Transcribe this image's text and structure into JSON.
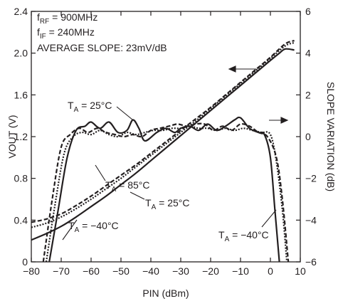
{
  "chart_data": {
    "type": "line",
    "xlabel": "PIN (dBm)",
    "ylabel_left": "VOUT (V)",
    "ylabel_right": "SLOPE VARIATION (dB)",
    "xlim": [
      -80,
      10
    ],
    "ylim_left": [
      0,
      2.4
    ],
    "ylim_right": [
      -6,
      6
    ],
    "x_ticks": [
      "−80",
      "−70",
      "−60",
      "−50",
      "−40",
      "−30",
      "−20",
      "−10",
      "0",
      "10"
    ],
    "y_ticks_left": [
      "0",
      "0.4",
      "0.8",
      "1.2",
      "1.6",
      "2.0",
      "2.4"
    ],
    "y_ticks_right": [
      "−6",
      "−4",
      "−2",
      "0",
      "2",
      "4",
      "6"
    ],
    "grid": false,
    "conditions": {
      "frf": {
        "pre": "f",
        "sub": "RF",
        "post": " = 900MHz"
      },
      "fif": {
        "pre": "f",
        "sub": "IF",
        "post": " = 240MHz"
      },
      "slope": "AVERAGE SLOPE: 23mV/dB"
    },
    "annotations": {
      "ta25_top": {
        "pre": "T",
        "sub": "A",
        "post": " = 25°C"
      },
      "ta85": {
        "pre": "T",
        "sub": "A",
        "post": " = 85°C"
      },
      "ta25_mid": {
        "pre": "T",
        "sub": "A",
        "post": " = 25°C"
      },
      "ta_m40_left": {
        "pre": "T",
        "sub": "A",
        "post": " = −40°C"
      },
      "ta_m40_right": {
        "pre": "T",
        "sub": "A",
        "post": " = −40°C"
      }
    },
    "series": [
      {
        "axis": "left",
        "style": "solid",
        "x": [
          -80,
          -75,
          -70,
          -65,
          -60,
          -55,
          -50,
          -45,
          -40,
          -35,
          -30,
          -25,
          -20,
          -15,
          -10,
          -5,
          0,
          3,
          5,
          8
        ],
        "y": [
          0.21,
          0.27,
          0.34,
          0.43,
          0.53,
          0.63,
          0.74,
          0.85,
          0.97,
          1.09,
          1.21,
          1.33,
          1.45,
          1.57,
          1.69,
          1.81,
          1.93,
          2.0,
          2.04,
          2.03
        ]
      },
      {
        "axis": "left",
        "style": "dashed",
        "x": [
          -80,
          -75,
          -70,
          -65,
          -60,
          -55,
          -50,
          -45,
          -40,
          -35,
          -30,
          -25,
          -20,
          -15,
          -10,
          -5,
          0,
          5,
          8
        ],
        "y": [
          0.38,
          0.41,
          0.46,
          0.54,
          0.63,
          0.73,
          0.83,
          0.93,
          1.04,
          1.15,
          1.26,
          1.37,
          1.48,
          1.6,
          1.72,
          1.84,
          1.96,
          2.09,
          2.12
        ]
      },
      {
        "axis": "left",
        "style": "dotted",
        "x": [
          -80,
          -75,
          -70,
          -65,
          -60,
          -55,
          -50,
          -45,
          -40,
          -35,
          -30,
          -25,
          -20,
          -15,
          -10,
          -5,
          0,
          5,
          8
        ],
        "y": [
          0.33,
          0.37,
          0.43,
          0.51,
          0.6,
          0.7,
          0.8,
          0.91,
          1.02,
          1.13,
          1.24,
          1.35,
          1.47,
          1.59,
          1.71,
          1.83,
          1.95,
          2.07,
          2.1
        ]
      },
      {
        "axis": "right",
        "style": "solid",
        "x": [
          -74,
          -71,
          -68,
          -65,
          -62,
          -60,
          -57,
          -54,
          -51,
          -48,
          -46,
          -44,
          -42,
          -38,
          -35,
          -32,
          -30,
          -27,
          -24,
          -21,
          -18,
          -15,
          -12,
          -10,
          -7,
          -4,
          -2,
          0,
          1.5,
          3
        ],
        "y": [
          -6,
          -3.5,
          -1,
          0.3,
          0.5,
          0.7,
          0.4,
          0.7,
          0.2,
          0.3,
          0.8,
          0.4,
          -0.2,
          0.2,
          0.4,
          0.2,
          0.4,
          0.5,
          0.3,
          0.6,
          0.3,
          0.5,
          0.8,
          0.9,
          0.4,
          0.2,
          0.1,
          -1,
          -3.5,
          -6
        ]
      },
      {
        "axis": "right",
        "style": "dashed",
        "x": [
          -76,
          -73,
          -70,
          -67,
          -64,
          -61,
          -58,
          -55,
          -52,
          -49,
          -46,
          -43,
          -40,
          -37,
          -34,
          -31,
          -28,
          -25,
          -22,
          -19,
          -16,
          -13,
          -10,
          -7,
          -4,
          -1,
          2,
          4,
          6
        ],
        "y": [
          -6,
          -3,
          -0.5,
          0.1,
          0.4,
          0.2,
          0.4,
          0.2,
          0.1,
          0,
          0.1,
          0,
          0.3,
          0.4,
          0.5,
          0.6,
          0.5,
          0.6,
          0.6,
          0.3,
          0.5,
          0.3,
          0.6,
          0.5,
          0.2,
          0,
          -1,
          -3,
          -6
        ]
      },
      {
        "axis": "right",
        "style": "dotted",
        "x": [
          -75,
          -72,
          -69,
          -66,
          -63,
          -60,
          -57,
          -54,
          -51,
          -48,
          -45,
          -42,
          -39,
          -36,
          -33,
          -30,
          -27,
          -24,
          -21,
          -18,
          -15,
          -12,
          -9,
          -6,
          -3,
          0,
          2,
          4,
          5.5
        ],
        "y": [
          -6,
          -3.2,
          -0.8,
          0,
          0.2,
          0.1,
          0.3,
          0.1,
          0,
          0.2,
          0.1,
          0.2,
          0.3,
          0.3,
          0.4,
          0.4,
          0.5,
          0.4,
          0.4,
          0.3,
          0.4,
          0.3,
          0.4,
          0.3,
          0.2,
          0.1,
          -1.2,
          -3.5,
          -6
        ]
      }
    ]
  }
}
